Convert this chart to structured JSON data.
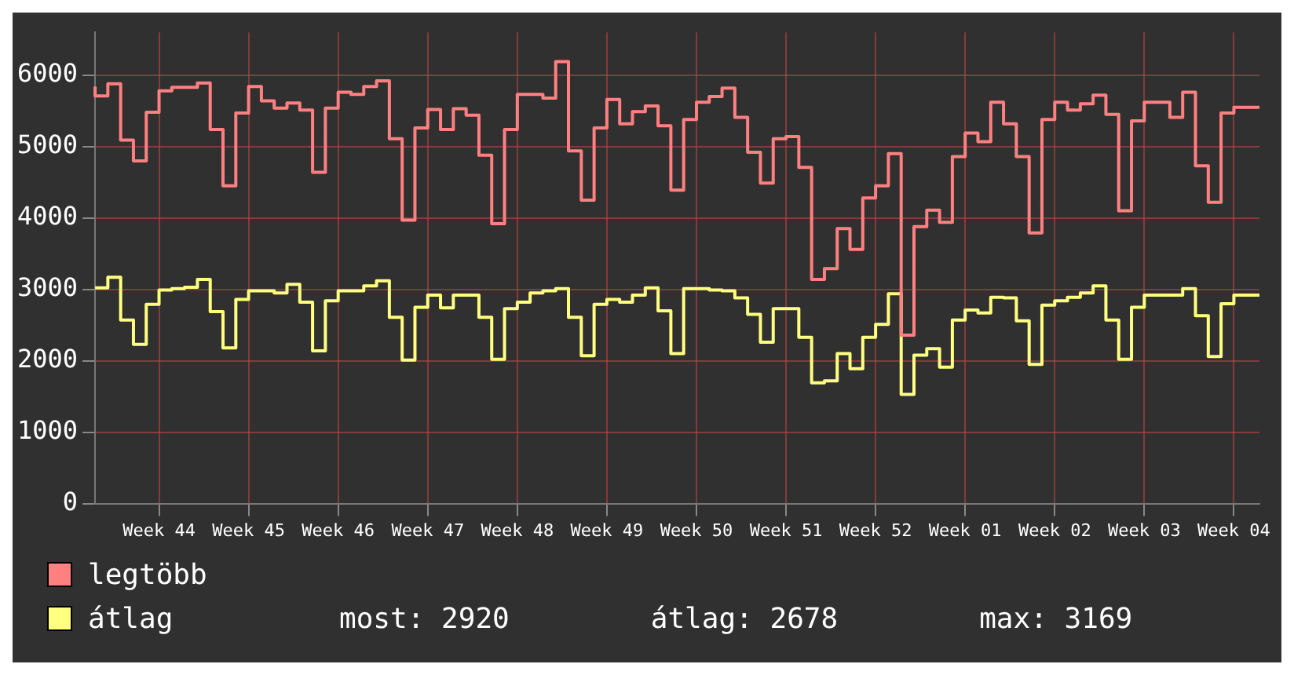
{
  "chart_data": {
    "type": "step",
    "categories": [
      null,
      null,
      null,
      null,
      null,
      "Week 44",
      null,
      null,
      null,
      null,
      null,
      null,
      "Week 45",
      null,
      null,
      null,
      null,
      null,
      null,
      "Week 46",
      null,
      null,
      null,
      null,
      null,
      null,
      "Week 47",
      null,
      null,
      null,
      null,
      null,
      null,
      "Week 48",
      null,
      null,
      null,
      null,
      null,
      null,
      "Week 49",
      null,
      null,
      null,
      null,
      null,
      null,
      "Week 50",
      null,
      null,
      null,
      null,
      null,
      null,
      "Week 51",
      null,
      null,
      null,
      null,
      null,
      null,
      "Week 52",
      null,
      null,
      null,
      null,
      null,
      null,
      "Week 01",
      null,
      null,
      null,
      null,
      null,
      null,
      "Week 02",
      null,
      null,
      null,
      null,
      null,
      null,
      "Week 03",
      null,
      null,
      null,
      null,
      null,
      null,
      "Week 04",
      null,
      null
    ],
    "series": [
      {
        "name": "legtöbb",
        "color": "#ff8080",
        "values": [
          5840,
          5710,
          5880,
          5090,
          4800,
          5480,
          5780,
          5830,
          5830,
          5890,
          5240,
          4450,
          5470,
          5840,
          5640,
          5540,
          5610,
          5510,
          4640,
          5540,
          5760,
          5730,
          5840,
          5920,
          5110,
          3970,
          5260,
          5520,
          5240,
          5530,
          5440,
          4880,
          3920,
          5240,
          5730,
          5730,
          5680,
          6190,
          4940,
          4250,
          5260,
          5660,
          5320,
          5490,
          5570,
          5290,
          4390,
          5380,
          5620,
          5700,
          5820,
          5410,
          4920,
          4490,
          5110,
          5140,
          4710,
          3140,
          3290,
          3850,
          3560,
          4280,
          4450,
          4900,
          2360,
          3880,
          4110,
          3940,
          4860,
          5190,
          5070,
          5620,
          5320,
          4860,
          3790,
          5380,
          5620,
          5510,
          5600,
          5720,
          5450,
          4100,
          5360,
          5620,
          5620,
          5410,
          5760,
          4730,
          4220,
          5470,
          5550,
          5550
        ]
      },
      {
        "name": "átlag",
        "color": "#ffff80",
        "values": [
          3020,
          3020,
          3170,
          2570,
          2230,
          2790,
          2990,
          3010,
          3030,
          3140,
          2690,
          2180,
          2860,
          2980,
          2980,
          2950,
          3070,
          2820,
          2140,
          2840,
          2980,
          2980,
          3050,
          3120,
          2610,
          2010,
          2750,
          2920,
          2740,
          2920,
          2920,
          2610,
          2020,
          2730,
          2820,
          2950,
          2980,
          3010,
          2610,
          2070,
          2790,
          2860,
          2820,
          2920,
          3020,
          2700,
          2100,
          3010,
          3010,
          2990,
          2980,
          2880,
          2650,
          2260,
          2730,
          2730,
          2330,
          1690,
          1720,
          2100,
          1890,
          2330,
          2510,
          2940,
          1530,
          2080,
          2170,
          1910,
          2570,
          2710,
          2670,
          2890,
          2880,
          2560,
          1950,
          2780,
          2840,
          2890,
          2950,
          3050,
          2570,
          2020,
          2750,
          2920,
          2920,
          2920,
          3010,
          2630,
          2060,
          2800,
          2920,
          2920
        ]
      }
    ],
    "ylim": [
      0,
      6600
    ],
    "yticks": [
      0,
      1000,
      2000,
      3000,
      4000,
      5000,
      6000
    ],
    "grid": true,
    "marker": "none",
    "legend": "bottom left",
    "annotations": [
      "most: 2920",
      "átlag: 2678",
      "max: 3169"
    ]
  }
}
